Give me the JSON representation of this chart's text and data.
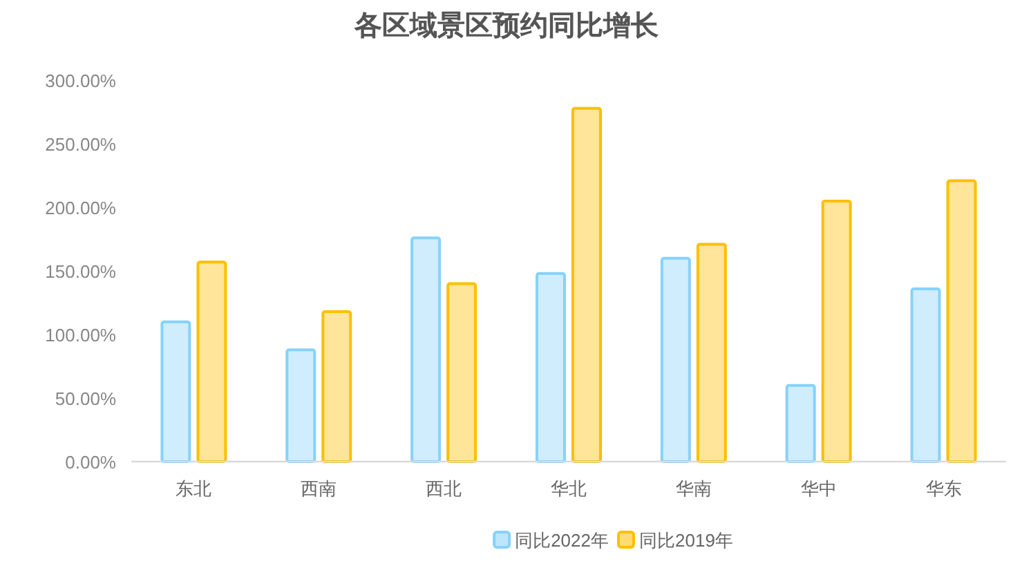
{
  "chart_data": {
    "type": "bar",
    "title": "各区域景区预约同比增长",
    "categories": [
      "东北",
      "西南",
      "西北",
      "华北",
      "华南",
      "华中",
      "华东"
    ],
    "series": [
      {
        "name": "同比2022年",
        "color": "#86d2fb",
        "values": [
          111,
          89,
          177,
          149,
          161,
          61,
          137
        ]
      },
      {
        "name": "同比2019年",
        "color": "#fdbf00",
        "values": [
          158,
          119,
          141,
          279,
          172,
          206,
          222
        ]
      }
    ],
    "ylim": [
      0,
      300
    ],
    "yticks": [
      {
        "value": 0,
        "label": "0.00%"
      },
      {
        "value": 50,
        "label": "50.00%"
      },
      {
        "value": 100,
        "label": "100.00%"
      },
      {
        "value": 150,
        "label": "150.00%"
      },
      {
        "value": 200,
        "label": "200.00%"
      },
      {
        "value": 250,
        "label": "250.00%"
      },
      {
        "value": 300,
        "label": "300.00%"
      }
    ],
    "grid": false,
    "legend": "bottom"
  }
}
